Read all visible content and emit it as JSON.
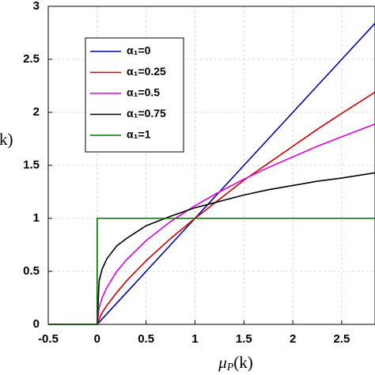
{
  "chart_data": {
    "type": "line",
    "x_label": {
      "base": "μ",
      "sub": "P",
      "tail": "(k)"
    },
    "y_label": "(k)",
    "x": [
      -0.5,
      0,
      0.02,
      0.05,
      0.1,
      0.2,
      0.3,
      0.5,
      0.75,
      1,
      1.25,
      1.5,
      1.75,
      2,
      2.25,
      2.5,
      2.84
    ],
    "series": [
      {
        "name": "α₁=0",
        "color": "#0000b0",
        "values": [
          0,
          0,
          0.02,
          0.05,
          0.1,
          0.2,
          0.3,
          0.5,
          0.75,
          1,
          1.25,
          1.5,
          1.75,
          2,
          2.25,
          2.5,
          2.84
        ]
      },
      {
        "name": "α₁=0.25",
        "color": "#d00000",
        "values": [
          0,
          0,
          0.05,
          0.11,
          0.18,
          0.3,
          0.41,
          0.6,
          0.81,
          1,
          1.18,
          1.36,
          1.52,
          1.68,
          1.84,
          1.99,
          2.19
        ]
      },
      {
        "name": "α₁=0.5",
        "color": "#e000e0",
        "values": [
          0,
          0,
          0.16,
          0.25,
          0.35,
          0.5,
          0.61,
          0.79,
          0.97,
          1.12,
          1.25,
          1.37,
          1.48,
          1.58,
          1.68,
          1.77,
          1.89
        ]
      },
      {
        "name": "α₁=0.75",
        "color": "#000000",
        "values": [
          0,
          0,
          0.41,
          0.52,
          0.62,
          0.74,
          0.81,
          0.93,
          1.02,
          1.1,
          1.16,
          1.22,
          1.27,
          1.31,
          1.35,
          1.38,
          1.43
        ]
      },
      {
        "name": "α₁=1",
        "color": "#007000",
        "x": [
          -0.5,
          0,
          0,
          2.84
        ],
        "values": [
          0,
          0,
          1,
          1
        ]
      }
    ],
    "xlim": [
      -0.5,
      2.84
    ],
    "ylim": [
      0,
      3
    ],
    "xticks": [
      -0.5,
      0,
      0.5,
      1,
      1.5,
      2,
      2.5
    ],
    "yticks": [
      0,
      0.5,
      1,
      1.5,
      2,
      2.5,
      3
    ],
    "grid": true,
    "legend": "upper left"
  }
}
